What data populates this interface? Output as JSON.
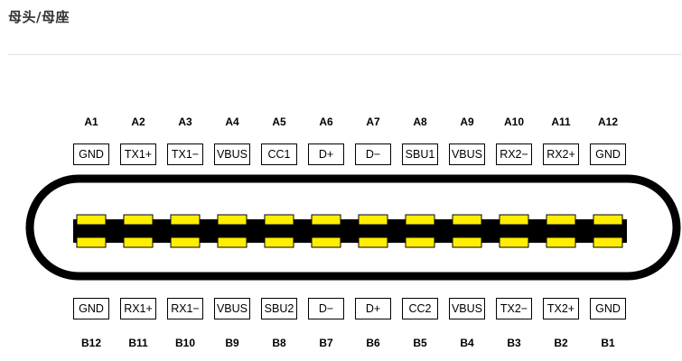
{
  "title": "母头/母座",
  "top_row": {
    "ids": [
      "A1",
      "A2",
      "A3",
      "A4",
      "A5",
      "A6",
      "A7",
      "A8",
      "A9",
      "A10",
      "A11",
      "A12"
    ],
    "signals": [
      "GND",
      "TX1+",
      "TX1−",
      "VBUS",
      "CC1",
      "D+",
      "D−",
      "SBU1",
      "VBUS",
      "RX2−",
      "RX2+",
      "GND"
    ]
  },
  "bottom_row": {
    "ids": [
      "B12",
      "B11",
      "B10",
      "B9",
      "B8",
      "B7",
      "B6",
      "B5",
      "B4",
      "B3",
      "B2",
      "B1"
    ],
    "signals": [
      "GND",
      "RX1+",
      "RX1−",
      "VBUS",
      "SBU2",
      "D−",
      "D+",
      "CC2",
      "VBUS",
      "TX2−",
      "TX2+",
      "GND"
    ]
  },
  "colors": {
    "pad": "#ffee00",
    "body": "#000000"
  }
}
